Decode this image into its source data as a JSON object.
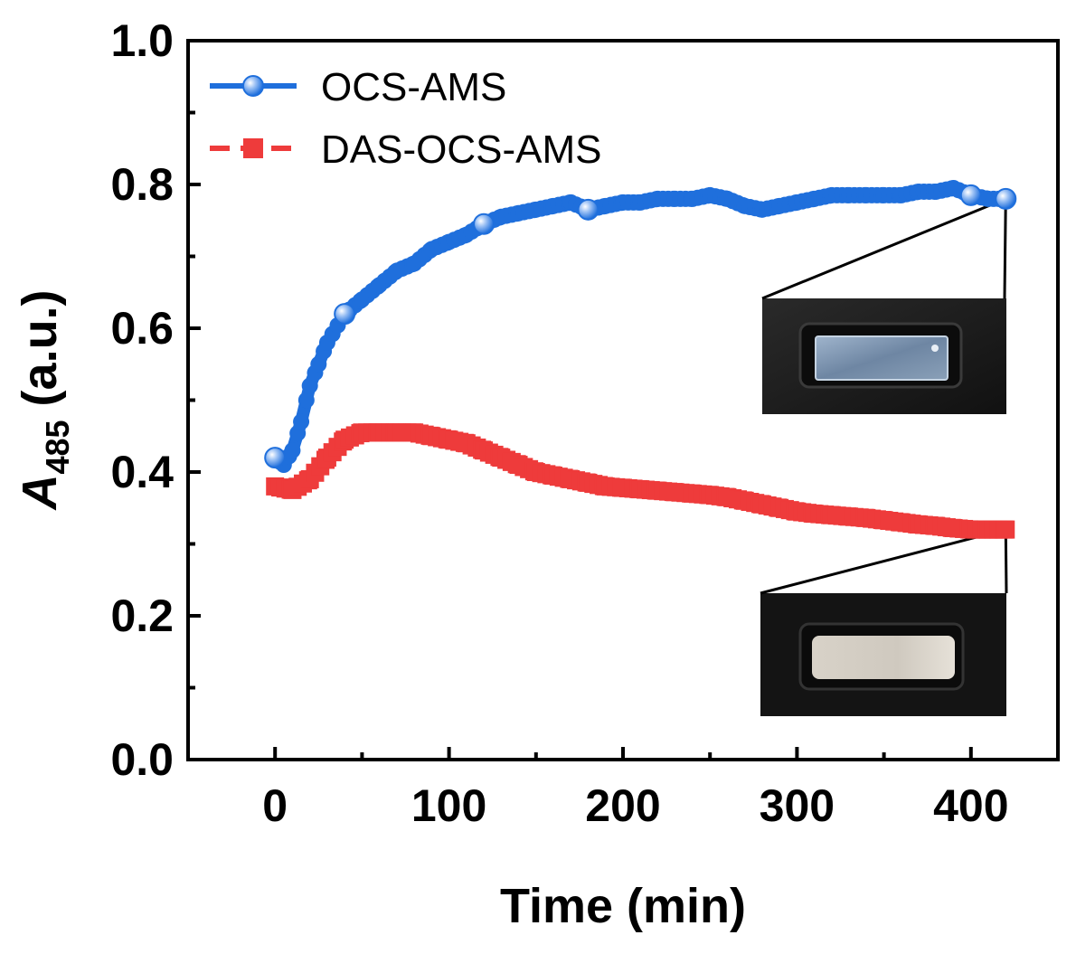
{
  "chart_data": {
    "type": "line",
    "xlabel": "Time (min)",
    "ylabel": {
      "main": "A",
      "subscript": "485",
      "unit": " (a.u.)"
    },
    "xlim": [
      -50,
      450
    ],
    "ylim": [
      0.0,
      1.0
    ],
    "xticks": [
      0,
      100,
      200,
      300,
      400
    ],
    "xtick_labels": [
      "0",
      "100",
      "200",
      "300",
      "400"
    ],
    "yticks": [
      0.0,
      0.2,
      0.4,
      0.6,
      0.8,
      1.0
    ],
    "ytick_labels": [
      "0.0",
      "0.2",
      "0.4",
      "0.6",
      "0.8",
      "1.0"
    ],
    "grid": false,
    "legend_position": "top-left",
    "series": [
      {
        "name": "OCS-AMS",
        "color": "#1f6fdc",
        "marker": "circle",
        "x": [
          0,
          5,
          10,
          15,
          20,
          25,
          30,
          40,
          50,
          60,
          70,
          80,
          90,
          100,
          110,
          120,
          130,
          140,
          150,
          160,
          170,
          180,
          190,
          200,
          210,
          220,
          230,
          240,
          250,
          260,
          270,
          280,
          290,
          300,
          310,
          320,
          330,
          340,
          350,
          360,
          370,
          380,
          390,
          400,
          410,
          420
        ],
        "values": [
          0.42,
          0.41,
          0.43,
          0.47,
          0.52,
          0.55,
          0.58,
          0.62,
          0.64,
          0.66,
          0.68,
          0.69,
          0.71,
          0.72,
          0.73,
          0.745,
          0.755,
          0.76,
          0.765,
          0.77,
          0.775,
          0.765,
          0.77,
          0.775,
          0.775,
          0.78,
          0.78,
          0.78,
          0.785,
          0.78,
          0.77,
          0.765,
          0.77,
          0.775,
          0.78,
          0.785,
          0.785,
          0.785,
          0.785,
          0.785,
          0.79,
          0.79,
          0.795,
          0.785,
          0.78,
          0.78
        ]
      },
      {
        "name": "DAS-OCS-AMS",
        "color": "#ee3b3b",
        "marker": "square",
        "x": [
          0,
          10,
          20,
          30,
          40,
          50,
          60,
          70,
          80,
          90,
          100,
          110,
          120,
          130,
          140,
          150,
          160,
          170,
          180,
          190,
          200,
          210,
          220,
          230,
          240,
          250,
          260,
          270,
          280,
          290,
          300,
          310,
          320,
          330,
          340,
          350,
          360,
          370,
          380,
          390,
          400,
          410,
          420
        ],
        "values": [
          0.38,
          0.375,
          0.39,
          0.42,
          0.445,
          0.455,
          0.455,
          0.455,
          0.455,
          0.45,
          0.445,
          0.44,
          0.43,
          0.42,
          0.41,
          0.4,
          0.395,
          0.39,
          0.385,
          0.38,
          0.378,
          0.376,
          0.374,
          0.372,
          0.37,
          0.368,
          0.365,
          0.36,
          0.355,
          0.35,
          0.345,
          0.342,
          0.34,
          0.338,
          0.336,
          0.333,
          0.33,
          0.327,
          0.325,
          0.322,
          0.32,
          0.32,
          0.32
        ]
      }
    ],
    "insets": [
      {
        "name": "photo-ocs-ams",
        "anchor": {
          "x": 420,
          "y": 0.78
        },
        "tone": "blue-tinted"
      },
      {
        "name": "photo-das-ocs-ams",
        "anchor": {
          "x": 420,
          "y": 0.32
        },
        "tone": "white"
      }
    ]
  }
}
